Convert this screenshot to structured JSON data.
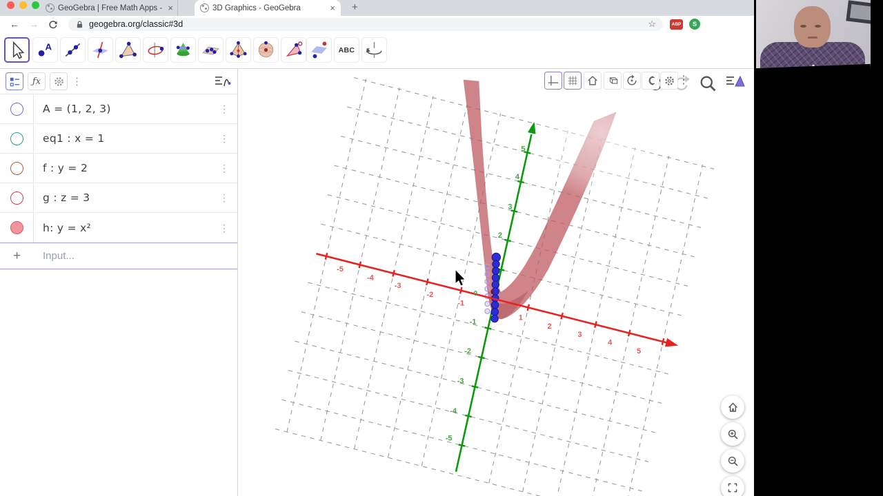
{
  "browser": {
    "tab1": "GeoGebra | Free Math Apps -",
    "tab2": "3D Graphics - GeoGebra",
    "new_tab": "+",
    "url": "geogebra.org/classic#3d",
    "ext_badge_adblock": "ABP",
    "ext_badge_s": "S"
  },
  "toolbar": {
    "abc_label": "ABC"
  },
  "algebra": {
    "rows": [
      {
        "label": "A = (1, 2, 3)",
        "color": "#7668d6",
        "filled": false
      },
      {
        "label": "eq1 : x = 1",
        "color": "#2f9e8f",
        "filled": false
      },
      {
        "label": "f : y = 2",
        "color": "#c2572f",
        "filled": false
      },
      {
        "label": "g : z = 3",
        "color": "#d63a52",
        "filled": false
      },
      {
        "label": "h: y = x²",
        "color": "#e2566d",
        "fill": "#f2949c",
        "filled": true
      }
    ],
    "input_placeholder": "Input..."
  },
  "graphics3d": {
    "type": "3d-view",
    "surface": {
      "name": "h",
      "equation": "y = x²",
      "color": "#bc555c"
    },
    "x_axis": {
      "color": "#e8221f",
      "label_color": "#e05a5a",
      "ticks": [
        -5,
        -4,
        -3,
        -2,
        -1,
        1,
        2,
        3,
        4,
        5
      ]
    },
    "y_axis": {
      "color": "#0a9a0a",
      "label_color": "#4aa34a",
      "ticks": [
        5,
        4,
        3,
        2,
        1,
        -1,
        -2,
        -3,
        -4,
        -5
      ]
    },
    "z_axis": {
      "color": "#2d2dd2"
    },
    "grid_color": "#9c9c9c",
    "origin_label_green": "0",
    "origin_label_red": "0",
    "axis_range": [
      -5,
      5
    ]
  }
}
